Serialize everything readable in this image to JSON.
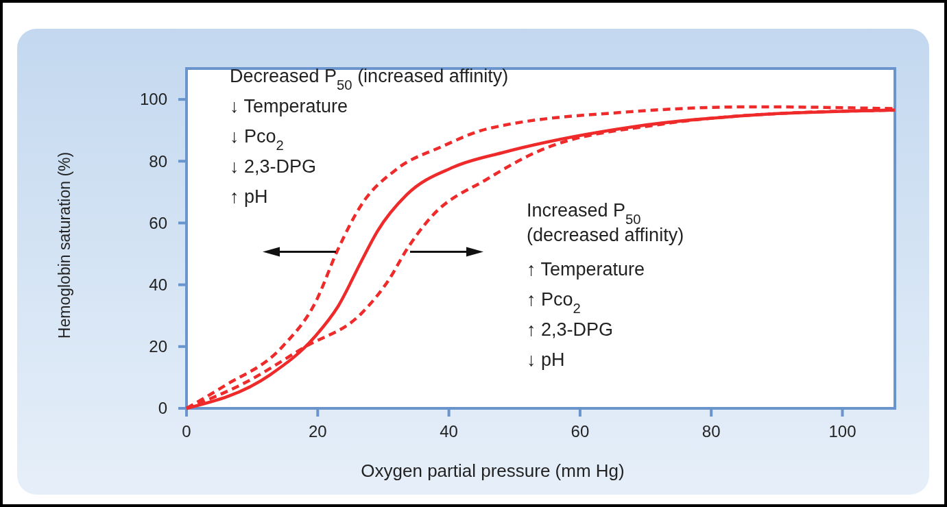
{
  "chart_data": {
    "type": "line",
    "xlabel": "Oxygen partial pressure (mm Hg)",
    "ylabel": "Hemoglobin saturation (%)",
    "xlim": [
      0,
      108
    ],
    "ylim": [
      0,
      110
    ],
    "xticks": [
      0,
      20,
      40,
      60,
      80,
      100
    ],
    "yticks": [
      0,
      20,
      40,
      60,
      80,
      100
    ],
    "grid": false,
    "marker": "none",
    "annotations": [
      "Decreased P$_{50}$ (increased affinity)",
      "↓ Temperature",
      "↓ Pco$_{2}$",
      "↓ 2,3-DPG",
      "↑ pH",
      "Increased P$_{50}$",
      "(decreased affinity)",
      "↑ Temperature",
      "↑ Pco$_{2}$",
      "↑ 2,3-DPG",
      "↓ pH"
    ],
    "series": [
      {
        "color": "#ee2a2a",
        "line_style": "dashed",
        "x": [
          0,
          5.8,
          14.5,
          19.7,
          23.1,
          26.7,
          31.9,
          38.9,
          45.9,
          67.6,
          86.7,
          108
        ],
        "values": [
          0,
          7.3,
          19.7,
          34.5,
          51.5,
          66,
          77.2,
          84.7,
          90.5,
          96,
          97.6,
          97
        ]
      },
      {
        "color": "#ee2a2a",
        "line_style": "solid",
        "x": [
          0,
          12.7,
          19.7,
          23.1,
          26.7,
          29.1,
          33.6,
          40.6,
          48.6,
          67.6,
          86.7,
          108
        ],
        "values": [
          0,
          10.8,
          23.5,
          33,
          47.8,
          57.3,
          69.2,
          78,
          83,
          91,
          95,
          96.5
        ]
      },
      {
        "color": "#ee2a2a",
        "line_style": "dashed",
        "x": [
          0,
          9.2,
          17.9,
          26.7,
          30.9,
          33.6,
          37.2,
          45.9,
          53.4,
          72.5,
          86.7,
          108
        ],
        "values": [
          0,
          8.6,
          19.7,
          30.8,
          41.8,
          51.5,
          61.7,
          74.3,
          83,
          92,
          95,
          96.5
        ]
      }
    ]
  }
}
